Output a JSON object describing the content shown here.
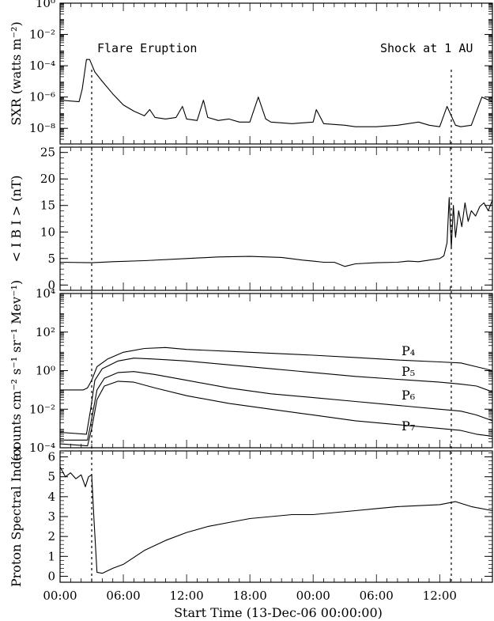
{
  "chart_data": [
    {
      "type": "line",
      "ylabel": "SXR (watts m⁻²)",
      "yscale": "log",
      "ylim": [
        1e-09,
        1
      ],
      "ytick_labels": [
        "10⁰",
        "10⁻²",
        "10⁻⁴",
        "10⁻⁶",
        "10⁻⁸"
      ],
      "annotations": [
        "Flare Eruption",
        "Shock at 1 AU"
      ],
      "series": [
        {
          "x": [
            0,
            1.8,
            2.1,
            2.5,
            2.8,
            3.3,
            4,
            5,
            6,
            7,
            8,
            8.5,
            9,
            10,
            11,
            11.6,
            12,
            13,
            13.6,
            14,
            15,
            16,
            17,
            18,
            18.8,
            19.5,
            20,
            22,
            24,
            24.3,
            25,
            27,
            28,
            30,
            32,
            34,
            35,
            36,
            36.7,
            37.5,
            38,
            39,
            40,
            41
          ],
          "y": [
            -6.2,
            -6.3,
            -5.5,
            -3.6,
            -3.6,
            -4.4,
            -5.0,
            -5.8,
            -6.5,
            -6.9,
            -7.2,
            -6.8,
            -7.3,
            -7.4,
            -7.3,
            -6.6,
            -7.4,
            -7.5,
            -6.2,
            -7.3,
            -7.5,
            -7.4,
            -7.6,
            -7.6,
            -6.0,
            -7.4,
            -7.6,
            -7.7,
            -7.6,
            -6.8,
            -7.7,
            -7.8,
            -7.9,
            -7.9,
            -7.8,
            -7.6,
            -7.8,
            -7.9,
            -6.6,
            -7.8,
            -7.9,
            -7.8,
            -6.0,
            -6.3
          ]
        }
      ]
    },
    {
      "type": "line",
      "ylabel": "< I B I > (nT)",
      "ylim": [
        -1,
        26
      ],
      "ytick_labels": [
        "25",
        "20",
        "15",
        "10",
        "5",
        "0"
      ],
      "series": [
        {
          "x": [
            0,
            3,
            5,
            8,
            12,
            15,
            18,
            21,
            23,
            24,
            25,
            26,
            27,
            28,
            30,
            32,
            33,
            34,
            35,
            36,
            36.4,
            36.7,
            36.9,
            37.1,
            37.3,
            37.5,
            37.8,
            38.1,
            38.4,
            38.7,
            39,
            39.4,
            39.8,
            40.2,
            40.6,
            41
          ],
          "y": [
            4.3,
            4.2,
            4.4,
            4.6,
            5.0,
            5.3,
            5.4,
            5.2,
            4.7,
            4.5,
            4.3,
            4.3,
            3.5,
            4.0,
            4.2,
            4.3,
            4.5,
            4.4,
            4.7,
            5.0,
            5.5,
            8.0,
            16.5,
            7.0,
            15.0,
            9.0,
            14.0,
            11.0,
            15.5,
            12.0,
            14.0,
            13.0,
            14.8,
            15.5,
            14.0,
            16.0
          ]
        }
      ]
    },
    {
      "type": "line",
      "ylabel": "(counts cm⁻² s⁻¹ sr⁻¹ Mev⁻¹)",
      "yscale": "log",
      "ylim": [
        0.0001,
        10000.0
      ],
      "ytick_labels": [
        "10⁴",
        "10²",
        "10⁰",
        "10⁻²",
        "10⁻⁴"
      ],
      "series": [
        {
          "name": "P₄",
          "x": [
            0,
            2.2,
            2.6,
            3.0,
            3.5,
            4.5,
            6,
            8,
            10,
            12,
            16,
            20,
            24,
            28,
            32,
            36,
            38,
            39.5,
            41
          ],
          "y": [
            -1.0,
            -1.0,
            -0.9,
            -0.5,
            0.2,
            0.6,
            0.95,
            1.15,
            1.2,
            1.1,
            1.0,
            0.9,
            0.8,
            0.68,
            0.55,
            0.45,
            0.4,
            0.2,
            0.0
          ]
        },
        {
          "name": "P₅",
          "x": [
            0,
            2.5,
            2.9,
            3.3,
            4.0,
            5.5,
            7,
            9,
            12,
            16,
            20,
            24,
            28,
            32,
            36,
            38,
            39.5,
            41
          ],
          "y": [
            -3.2,
            -3.3,
            -2.0,
            -0.5,
            0.1,
            0.5,
            0.65,
            0.6,
            0.5,
            0.3,
            0.1,
            -0.1,
            -0.3,
            -0.45,
            -0.6,
            -0.7,
            -0.8,
            -1.1
          ]
        },
        {
          "name": "P₆",
          "x": [
            0,
            2.6,
            3.0,
            3.5,
            4.2,
            5.5,
            7,
            9,
            12,
            16,
            20,
            24,
            28,
            32,
            36,
            38,
            39.5,
            41
          ],
          "y": [
            -3.6,
            -3.6,
            -2.5,
            -1.0,
            -0.4,
            -0.1,
            -0.05,
            -0.2,
            -0.5,
            -0.9,
            -1.2,
            -1.4,
            -1.6,
            -1.8,
            -2.0,
            -2.1,
            -2.3,
            -2.6
          ]
        },
        {
          "name": "P₇",
          "x": [
            0,
            2.6,
            3.0,
            3.5,
            4.2,
            5.5,
            7,
            9,
            12,
            16,
            20,
            24,
            28,
            32,
            36,
            38,
            39.5,
            41
          ],
          "y": [
            -3.8,
            -3.9,
            -3.0,
            -1.5,
            -0.8,
            -0.55,
            -0.6,
            -0.9,
            -1.3,
            -1.7,
            -2.0,
            -2.3,
            -2.6,
            -2.8,
            -3.0,
            -3.1,
            -3.3,
            -3.4
          ]
        }
      ]
    },
    {
      "type": "line",
      "ylabel": "Proton Spectral Index",
      "ylim": [
        -0.3,
        6.3
      ],
      "ytick_labels": [
        "6",
        "5",
        "4",
        "3",
        "2",
        "1",
        "0"
      ],
      "xlabel": "Start Time (13-Dec-06 00:00:00)",
      "xlim": [
        0,
        41
      ],
      "xtick_labels": [
        "00:00",
        "06:00",
        "12:00",
        "18:00",
        "00:00",
        "06:00",
        "12:00"
      ],
      "markers": [
        3.0,
        37.1
      ],
      "series": [
        {
          "x": [
            0,
            0.5,
            1,
            1.5,
            2,
            2.4,
            2.7,
            3.0,
            3.2,
            3.5,
            4,
            5,
            6,
            8,
            10,
            12,
            14,
            16,
            18,
            20,
            22,
            24,
            26,
            28,
            30,
            32,
            34,
            36,
            37.5,
            39,
            41
          ],
          "y": [
            5.5,
            5.0,
            5.2,
            4.9,
            5.1,
            4.5,
            5.0,
            5.1,
            3.0,
            0.2,
            0.15,
            0.4,
            0.6,
            1.3,
            1.8,
            2.2,
            2.5,
            2.7,
            2.9,
            3.0,
            3.1,
            3.1,
            3.2,
            3.3,
            3.4,
            3.5,
            3.55,
            3.6,
            3.75,
            3.5,
            3.3
          ]
        }
      ]
    }
  ]
}
